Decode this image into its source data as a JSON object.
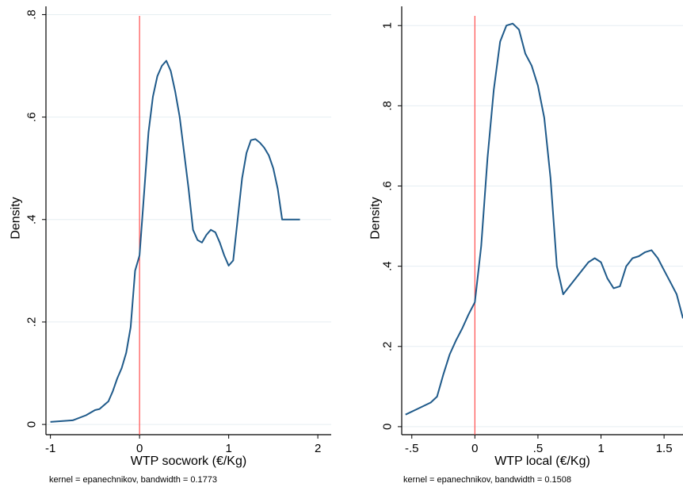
{
  "chart_data": [
    {
      "type": "line",
      "title": "",
      "xlabel": "WTP socwork (€/Kg)",
      "ylabel": "Density",
      "xlim": [
        -1.05,
        2.15
      ],
      "ylim": [
        -0.02,
        0.81
      ],
      "xticks": [
        -1,
        0,
        1,
        2
      ],
      "xtick_labels": [
        "-1",
        "0",
        "1",
        "2"
      ],
      "yticks": [
        0,
        0.2,
        0.4,
        0.6,
        0.8
      ],
      "ytick_labels": [
        "0",
        ".2",
        ".4",
        ".6",
        ".8"
      ],
      "grid": true,
      "colors": {
        "line": "#1f5a8a",
        "refline": "#ff4d4d",
        "grid": "#e6eef2"
      },
      "reference_line_x": 0,
      "note": "kernel = epanechnikov, bandwidth = 0.1773",
      "series": [
        {
          "x": [
            -1.0,
            -0.75,
            -0.6,
            -0.5,
            -0.45,
            -0.35,
            -0.3,
            -0.25,
            -0.2,
            -0.15,
            -0.1,
            -0.05,
            0.0,
            0.05,
            0.1,
            0.15,
            0.2,
            0.25,
            0.3,
            0.35,
            0.4,
            0.45,
            0.5,
            0.55,
            0.6,
            0.65,
            0.7,
            0.75,
            0.8,
            0.85,
            0.9,
            0.95,
            1.0,
            1.05,
            1.1,
            1.15,
            1.2,
            1.25,
            1.3,
            1.35,
            1.4,
            1.45,
            1.5,
            1.55,
            1.6,
            1.65,
            1.7,
            1.75,
            1.8
          ],
          "y": [
            0.005,
            0.008,
            0.018,
            0.028,
            0.03,
            0.045,
            0.065,
            0.09,
            0.11,
            0.14,
            0.19,
            0.3,
            0.33,
            0.45,
            0.57,
            0.64,
            0.68,
            0.7,
            0.71,
            0.69,
            0.65,
            0.6,
            0.53,
            0.46,
            0.38,
            0.36,
            0.355,
            0.37,
            0.38,
            0.375,
            0.355,
            0.33,
            0.31,
            0.32,
            0.4,
            0.48,
            0.53,
            0.555,
            0.557,
            0.55,
            0.54,
            0.525,
            0.5,
            0.46,
            0.4,
            0.4,
            0.4,
            0.4,
            0.4
          ]
        }
      ]
    },
    {
      "type": "line",
      "title": "",
      "xlabel": "WTP local (€/Kg)",
      "ylabel": "Density",
      "xlim": [
        -0.58,
        1.65
      ],
      "ylim": [
        -0.02,
        1.04
      ],
      "xticks": [
        -0.5,
        0,
        0.5,
        1,
        1.5
      ],
      "xtick_labels": [
        "-.5",
        "0",
        ".5",
        "1",
        "1.5"
      ],
      "yticks": [
        0,
        0.2,
        0.4,
        0.6,
        0.8,
        1
      ],
      "ytick_labels": [
        "0",
        ".2",
        ".4",
        ".6",
        ".8",
        "1"
      ],
      "grid": true,
      "colors": {
        "line": "#1f5a8a",
        "refline": "#ff4d4d",
        "grid": "#e6eef2"
      },
      "reference_line_x": 0,
      "note": "kernel = epanechnikov, bandwidth = 0.1508",
      "series": [
        {
          "x": [
            -0.55,
            -0.45,
            -0.35,
            -0.3,
            -0.25,
            -0.2,
            -0.15,
            -0.1,
            -0.05,
            0.0,
            0.05,
            0.1,
            0.15,
            0.2,
            0.25,
            0.3,
            0.35,
            0.4,
            0.45,
            0.5,
            0.55,
            0.6,
            0.65,
            0.7,
            0.75,
            0.8,
            0.85,
            0.9,
            0.95,
            1.0,
            1.05,
            1.1,
            1.15,
            1.2,
            1.25,
            1.3,
            1.35,
            1.4,
            1.45,
            1.5,
            1.55,
            1.6,
            1.65
          ],
          "y": [
            0.03,
            0.045,
            0.06,
            0.075,
            0.13,
            0.18,
            0.215,
            0.245,
            0.28,
            0.31,
            0.45,
            0.67,
            0.84,
            0.96,
            1.0,
            1.005,
            0.99,
            0.93,
            0.9,
            0.85,
            0.77,
            0.62,
            0.4,
            0.33,
            0.35,
            0.37,
            0.39,
            0.41,
            0.42,
            0.41,
            0.37,
            0.345,
            0.35,
            0.4,
            0.42,
            0.425,
            0.435,
            0.44,
            0.42,
            0.39,
            0.36,
            0.33,
            0.27
          ]
        }
      ]
    }
  ]
}
